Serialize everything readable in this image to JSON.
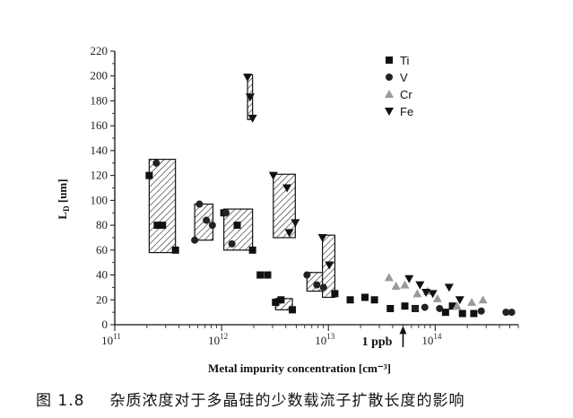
{
  "caption": {
    "figure_number": "图 1.8",
    "text": "杂质浓度对于多晶硅的少数载流子扩散长度的影响"
  },
  "chart_data": {
    "type": "scatter",
    "title": "",
    "xlabel": "Metal impurity concentration [cm⁻³]",
    "ylabel_main": "L",
    "ylabel_sub": "D",
    "ylabel_unit": " [um]",
    "x_scale": "log",
    "xlim": [
      100000000000.0,
      600000000000000.0
    ],
    "ylim": [
      0,
      220
    ],
    "x_ticks": [
      {
        "value": 100000000000.0,
        "base": "10",
        "exp": "11"
      },
      {
        "value": 1000000000000.0,
        "base": "10",
        "exp": "12"
      },
      {
        "value": 10000000000000.0,
        "base": "10",
        "exp": "13"
      },
      {
        "value": 100000000000000.0,
        "base": "10",
        "exp": "14"
      }
    ],
    "y_ticks": [
      0,
      20,
      40,
      60,
      80,
      100,
      120,
      140,
      160,
      180,
      200,
      220
    ],
    "grid": false,
    "legend_position": "top-right",
    "series": [
      {
        "name": "Ti",
        "marker": "square",
        "points": [
          [
            210000000000.0,
            120
          ],
          [
            250000000000.0,
            80
          ],
          [
            280000000000.0,
            80
          ],
          [
            370000000000.0,
            60
          ],
          [
            1050000000000.0,
            90
          ],
          [
            1400000000000.0,
            80
          ],
          [
            1950000000000.0,
            60
          ],
          [
            2300000000000.0,
            40
          ],
          [
            2700000000000.0,
            40
          ],
          [
            3200000000000.0,
            18
          ],
          [
            3600000000000.0,
            20
          ],
          [
            4600000000000.0,
            12
          ],
          [
            11500000000000.0,
            25
          ],
          [
            16000000000000.0,
            20
          ],
          [
            22000000000000.0,
            22
          ],
          [
            27000000000000.0,
            20
          ],
          [
            38000000000000.0,
            13
          ],
          [
            52000000000000.0,
            15
          ],
          [
            65000000000000.0,
            13
          ],
          [
            125000000000000.0,
            10
          ],
          [
            145000000000000.0,
            15
          ],
          [
            180000000000000.0,
            9
          ],
          [
            230000000000000.0,
            9
          ]
        ]
      },
      {
        "name": "V",
        "marker": "circle",
        "points": [
          [
            245000000000.0,
            130
          ],
          [
            560000000000.0,
            68
          ],
          [
            620000000000.0,
            97
          ],
          [
            720000000000.0,
            84
          ],
          [
            820000000000.0,
            80
          ],
          [
            1100000000000.0,
            90
          ],
          [
            1250000000000.0,
            65
          ],
          [
            6300000000000.0,
            40
          ],
          [
            7800000000000.0,
            32
          ],
          [
            9000000000000.0,
            30
          ],
          [
            65000000000000.0,
            13
          ],
          [
            80000000000000.0,
            14
          ],
          [
            110000000000000.0,
            13
          ],
          [
            270000000000000.0,
            11
          ],
          [
            460000000000000.0,
            10
          ],
          [
            520000000000000.0,
            10
          ]
        ]
      },
      {
        "name": "Cr",
        "marker": "triangle-up",
        "points": [
          [
            37000000000000.0,
            38
          ],
          [
            43000000000000.0,
            31
          ],
          [
            52000000000000.0,
            32
          ],
          [
            68000000000000.0,
            25
          ],
          [
            85000000000000.0,
            27
          ],
          [
            105000000000000.0,
            21
          ],
          [
            160000000000000.0,
            15
          ],
          [
            220000000000000.0,
            18
          ],
          [
            280000000000000.0,
            20
          ]
        ]
      },
      {
        "name": "Fe",
        "marker": "triangle-down",
        "points": [
          [
            1750000000000.0,
            199
          ],
          [
            1850000000000.0,
            183
          ],
          [
            1950000000000.0,
            166
          ],
          [
            3050000000000.0,
            120
          ],
          [
            4100000000000.0,
            110
          ],
          [
            4300000000000.0,
            74
          ],
          [
            4900000000000.0,
            82
          ],
          [
            8800000000000.0,
            70
          ],
          [
            10200000000000.0,
            48
          ],
          [
            57000000000000.0,
            37
          ],
          [
            72000000000000.0,
            32
          ],
          [
            82000000000000.0,
            26
          ],
          [
            95000000000000.0,
            25
          ],
          [
            135000000000000.0,
            30
          ],
          [
            170000000000000.0,
            20
          ]
        ]
      }
    ],
    "ranges": [
      {
        "x_from": 210000000000.0,
        "x_to": 370000000000.0,
        "y_from": 58,
        "y_to": 133
      },
      {
        "x_from": 560000000000.0,
        "x_to": 830000000000.0,
        "y_from": 68,
        "y_to": 97
      },
      {
        "x_from": 1050000000000.0,
        "x_to": 1950000000000.0,
        "y_from": 60,
        "y_to": 93
      },
      {
        "x_from": 1750000000000.0,
        "x_to": 1950000000000.0,
        "y_from": 165,
        "y_to": 201
      },
      {
        "x_from": 3050000000000.0,
        "x_to": 4900000000000.0,
        "y_from": 70,
        "y_to": 121
      },
      {
        "x_from": 3200000000000.0,
        "x_to": 4600000000000.0,
        "y_from": 12,
        "y_to": 21
      },
      {
        "x_from": 6300000000000.0,
        "x_to": 8800000000000.0,
        "y_from": 27,
        "y_to": 42
      },
      {
        "x_from": 8800000000000.0,
        "x_to": 11500000000000.0,
        "y_from": 22,
        "y_to": 72
      }
    ],
    "annotations": [
      {
        "text": "1 ppb",
        "x": 50000000000000.0,
        "arrow_from_y": -18,
        "arrow_to_y": -1
      }
    ]
  }
}
